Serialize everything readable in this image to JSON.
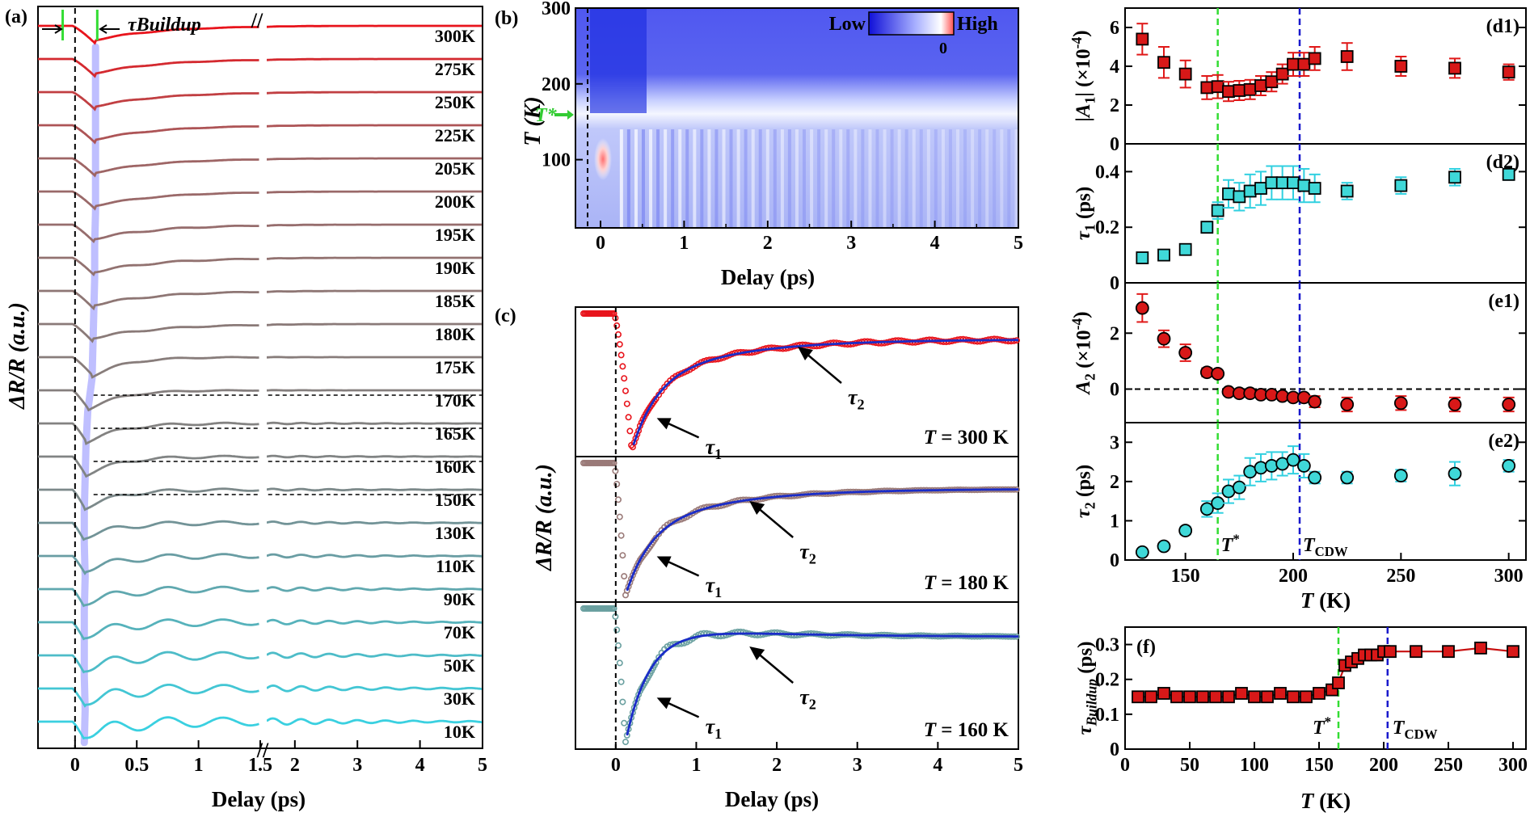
{
  "colors": {
    "hot": "#e8141c",
    "mid": "#8a7a78",
    "cool": "#3ad0e0",
    "cyan_marker": "#3fd8d8",
    "red_marker": "#d81818",
    "green_line": "#33dd33",
    "blue_line": "#1a1acc",
    "fit_line": "#1a2cc8",
    "lavender": "#b4b4ff"
  },
  "chart_data": [
    {
      "id": "a",
      "panel_label": "(a)",
      "type": "line",
      "title": "",
      "xlabel": "Delay (ps)",
      "ylabel": "ΔR/R (a.u.)",
      "buildup_label": "τBuildup",
      "x_ticks_left": [
        "0",
        "0.5",
        "1",
        "1.5"
      ],
      "x_ticks_right": [
        "2",
        "3",
        "4",
        "5"
      ],
      "axis_break": "//",
      "series_labels": [
        "300K",
        "275K",
        "250K",
        "225K",
        "205K",
        "200K",
        "195K",
        "190K",
        "185K",
        "180K",
        "175K",
        "170K",
        "165K",
        "160K",
        "150K",
        "130K",
        "110K",
        "90K",
        "70K",
        "50K",
        "30K",
        "10K"
      ],
      "temperatures": [
        300,
        275,
        250,
        225,
        205,
        200,
        195,
        190,
        185,
        180,
        175,
        170,
        165,
        160,
        150,
        130,
        110,
        90,
        70,
        50,
        30,
        10
      ],
      "buildup_ps": [
        0.28,
        0.28,
        0.28,
        0.28,
        0.28,
        0.28,
        0.27,
        0.27,
        0.26,
        0.25,
        0.24,
        0.19,
        0.17,
        0.16,
        0.15,
        0.15,
        0.16,
        0.15,
        0.15,
        0.15,
        0.16,
        0.15
      ]
    },
    {
      "id": "b",
      "panel_label": "(b)",
      "type": "heatmap",
      "xlabel": "Delay (ps)",
      "ylabel": "T (K)",
      "x_ticks": [
        "0",
        "1",
        "2",
        "3",
        "4",
        "5"
      ],
      "y_ticks": [
        "100",
        "200",
        "300"
      ],
      "xlim": [
        -0.3,
        5
      ],
      "ylim": [
        10,
        300
      ],
      "colorbar_low": "Low",
      "colorbar_high": "High",
      "colorbar_zero": "0",
      "t_star_label": "T*",
      "t_star_K": 165
    },
    {
      "id": "c",
      "panel_label": "(c)",
      "type": "line",
      "xlabel": "Delay (ps)",
      "ylabel": "ΔR/R (a.u.)",
      "x_ticks": [
        "0",
        "1",
        "2",
        "3",
        "4",
        "5"
      ],
      "xlim": [
        -0.5,
        5
      ],
      "subpanels": [
        {
          "temp_label": "T = 300 K",
          "tau1": "τ1",
          "tau2": "τ2"
        },
        {
          "temp_label": "T = 180 K",
          "tau1": "τ1",
          "tau2": "τ2"
        },
        {
          "temp_label": "T = 160 K",
          "tau1": "τ1",
          "tau2": "τ2"
        }
      ]
    },
    {
      "id": "d1",
      "panel_label": "(d1)",
      "type": "scatter",
      "ylabel": "|A1| (×10⁻⁴)",
      "ylim": [
        0,
        7
      ],
      "y_ticks": [
        "0",
        "2",
        "4",
        "6"
      ],
      "x": [
        130,
        140,
        150,
        160,
        165,
        170,
        175,
        180,
        185,
        190,
        195,
        200,
        205,
        210,
        225,
        250,
        275,
        300
      ],
      "values": [
        5.4,
        4.2,
        3.6,
        2.9,
        2.95,
        2.7,
        2.75,
        2.8,
        3.0,
        3.2,
        3.6,
        4.1,
        4.1,
        4.4,
        4.5,
        4.0,
        3.9,
        3.7
      ],
      "errors": [
        0.8,
        0.8,
        0.7,
        0.6,
        0.6,
        0.5,
        0.5,
        0.5,
        0.5,
        0.5,
        0.5,
        0.6,
        0.6,
        0.6,
        0.7,
        0.5,
        0.5,
        0.4
      ]
    },
    {
      "id": "d2",
      "panel_label": "(d2)",
      "type": "scatter",
      "ylabel": "τ1 (ps)",
      "ylim": [
        0,
        0.5
      ],
      "y_ticks": [
        "0",
        "0.2",
        "0.4"
      ],
      "x": [
        130,
        140,
        150,
        160,
        165,
        170,
        175,
        180,
        185,
        190,
        195,
        200,
        205,
        210,
        225,
        250,
        275,
        300
      ],
      "values": [
        0.09,
        0.1,
        0.12,
        0.2,
        0.26,
        0.32,
        0.31,
        0.33,
        0.34,
        0.36,
        0.36,
        0.36,
        0.35,
        0.34,
        0.33,
        0.35,
        0.38,
        0.39
      ],
      "errors": [
        0.01,
        0.01,
        0.01,
        0.02,
        0.03,
        0.05,
        0.05,
        0.06,
        0.06,
        0.06,
        0.06,
        0.06,
        0.06,
        0.05,
        0.03,
        0.03,
        0.03,
        0.02
      ]
    },
    {
      "id": "e1",
      "panel_label": "(e1)",
      "type": "scatter",
      "ylabel": "A2 (×10⁻⁴)",
      "ylim": [
        -1.2,
        3.8
      ],
      "y_ticks": [
        "0",
        "2"
      ],
      "x": [
        130,
        140,
        150,
        160,
        165,
        170,
        175,
        180,
        185,
        190,
        195,
        200,
        205,
        210,
        225,
        250,
        275,
        300
      ],
      "values": [
        2.9,
        1.8,
        1.3,
        0.6,
        0.55,
        -0.1,
        -0.15,
        -0.15,
        -0.2,
        -0.2,
        -0.25,
        -0.3,
        -0.3,
        -0.45,
        -0.55,
        -0.5,
        -0.55,
        -0.55
      ],
      "errors": [
        0.5,
        0.3,
        0.3,
        0.15,
        0.1,
        0.05,
        0.05,
        0.05,
        0.05,
        0.1,
        0.1,
        0.1,
        0.1,
        0.2,
        0.25,
        0.25,
        0.25,
        0.25
      ]
    },
    {
      "id": "e2",
      "panel_label": "(e2)",
      "type": "scatter",
      "ylabel": "τ2 (ps)",
      "ylim": [
        0,
        3.5
      ],
      "y_ticks": [
        "0",
        "1",
        "2",
        "3"
      ],
      "x": [
        130,
        140,
        150,
        160,
        165,
        170,
        175,
        180,
        185,
        190,
        195,
        200,
        205,
        210,
        225,
        250,
        275,
        300
      ],
      "values": [
        0.2,
        0.35,
        0.75,
        1.3,
        1.45,
        1.75,
        1.85,
        2.25,
        2.35,
        2.4,
        2.45,
        2.55,
        2.4,
        2.1,
        2.1,
        2.15,
        2.2,
        2.4
      ],
      "errors": [
        0.05,
        0.05,
        0.1,
        0.2,
        0.25,
        0.3,
        0.3,
        0.35,
        0.35,
        0.35,
        0.3,
        0.35,
        0.3,
        0.15,
        0.15,
        0.15,
        0.3,
        0.15
      ],
      "xlabel": "T (K)",
      "x_ticks": [
        "150",
        "200",
        "250",
        "300"
      ],
      "xlim": [
        122,
        308
      ],
      "t_star_label": "T*",
      "t_cdw_label": "TCDW",
      "t_star_K": 165,
      "t_cdw_K": 203
    },
    {
      "id": "f",
      "panel_label": "(f)",
      "type": "scatter",
      "ylabel": "τBuildup (ps)",
      "xlabel": "T (K)",
      "xlim": [
        0,
        310
      ],
      "ylim": [
        0,
        0.35
      ],
      "x_ticks": [
        "0",
        "50",
        "100",
        "150",
        "200",
        "250",
        "300"
      ],
      "y_ticks": [
        "0",
        "0.1",
        "0.2",
        "0.3"
      ],
      "x": [
        10,
        20,
        30,
        40,
        50,
        60,
        70,
        80,
        90,
        100,
        110,
        120,
        130,
        140,
        150,
        160,
        165,
        170,
        175,
        180,
        185,
        190,
        195,
        200,
        205,
        225,
        250,
        275,
        300
      ],
      "values": [
        0.15,
        0.15,
        0.16,
        0.15,
        0.15,
        0.15,
        0.15,
        0.15,
        0.16,
        0.15,
        0.15,
        0.16,
        0.15,
        0.15,
        0.16,
        0.17,
        0.19,
        0.24,
        0.25,
        0.26,
        0.27,
        0.27,
        0.27,
        0.28,
        0.28,
        0.28,
        0.28,
        0.29,
        0.28
      ],
      "t_star_label": "T*",
      "t_cdw_label": "TCDW",
      "t_star_K": 165,
      "t_cdw_K": 203
    }
  ]
}
